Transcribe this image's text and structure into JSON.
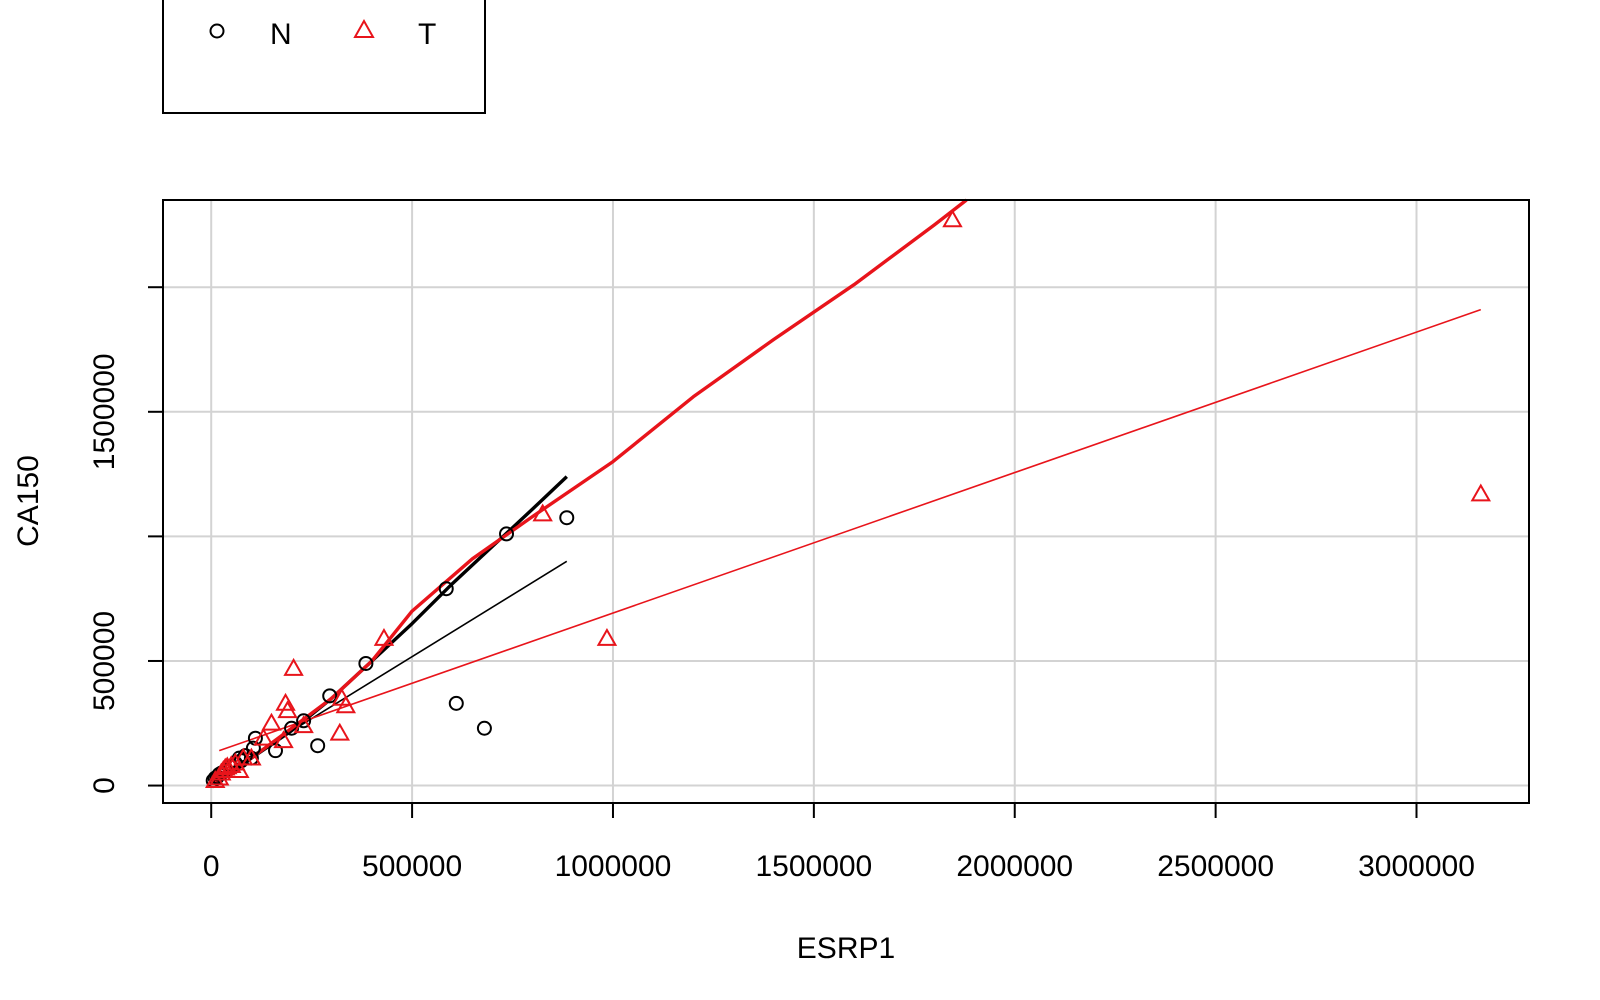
{
  "chart_data": {
    "type": "scatter",
    "xlabel": "ESRP1",
    "ylabel": "CA150",
    "xlim": [
      -120000,
      3280000
    ],
    "ylim": [
      -70000,
      2350000
    ],
    "xticks": [
      0,
      500000,
      1000000,
      1500000,
      2000000,
      2500000,
      3000000
    ],
    "xtick_labels": [
      "0",
      "500000",
      "1000000",
      "1500000",
      "2000000",
      "2500000",
      "3000000"
    ],
    "yticks": [
      0,
      500000,
      1000000,
      1500000,
      2000000
    ],
    "ytick_labels": [
      "0",
      "500000",
      "",
      "1500000",
      ""
    ],
    "grid": true,
    "legend": {
      "position": "top-left",
      "entries": [
        {
          "label": "N",
          "marker": "circle",
          "color": "#000000"
        },
        {
          "label": "T",
          "marker": "triangle",
          "color": "#e8141b"
        }
      ]
    },
    "series": [
      {
        "name": "N",
        "color": "#000000",
        "marker": "circle",
        "points": [
          [
            5000,
            20000
          ],
          [
            10000,
            30000
          ],
          [
            15000,
            35000
          ],
          [
            20000,
            45000
          ],
          [
            25000,
            50000
          ],
          [
            35000,
            60000
          ],
          [
            50000,
            75000
          ],
          [
            60000,
            90000
          ],
          [
            70000,
            110000
          ],
          [
            75000,
            100000
          ],
          [
            85000,
            120000
          ],
          [
            100000,
            110000
          ],
          [
            105000,
            150000
          ],
          [
            110000,
            190000
          ],
          [
            160000,
            140000
          ],
          [
            200000,
            230000
          ],
          [
            230000,
            260000
          ],
          [
            265000,
            160000
          ],
          [
            295000,
            360000
          ],
          [
            385000,
            490000
          ],
          [
            585000,
            790000
          ],
          [
            610000,
            330000
          ],
          [
            680000,
            230000
          ],
          [
            735000,
            1010000
          ],
          [
            885000,
            1075000
          ]
        ],
        "fit_line": [
          [
            5000,
            25000
          ],
          [
            885000,
            900000
          ]
        ],
        "smooth_curve": [
          [
            5000,
            15000
          ],
          [
            100000,
            110000
          ],
          [
            200000,
            220000
          ],
          [
            300000,
            350000
          ],
          [
            400000,
            500000
          ],
          [
            500000,
            650000
          ],
          [
            600000,
            810000
          ],
          [
            700000,
            960000
          ],
          [
            800000,
            1110000
          ],
          [
            885000,
            1240000
          ]
        ]
      },
      {
        "name": "T",
        "color": "#e8141b",
        "marker": "triangle",
        "points": [
          [
            10000,
            20000
          ],
          [
            20000,
            30000
          ],
          [
            25000,
            50000
          ],
          [
            30000,
            60000
          ],
          [
            35000,
            70000
          ],
          [
            40000,
            75000
          ],
          [
            50000,
            80000
          ],
          [
            60000,
            90000
          ],
          [
            70000,
            60000
          ],
          [
            80000,
            110000
          ],
          [
            100000,
            110000
          ],
          [
            130000,
            190000
          ],
          [
            150000,
            250000
          ],
          [
            180000,
            180000
          ],
          [
            185000,
            330000
          ],
          [
            190000,
            300000
          ],
          [
            205000,
            470000
          ],
          [
            230000,
            240000
          ],
          [
            320000,
            210000
          ],
          [
            325000,
            350000
          ],
          [
            335000,
            320000
          ],
          [
            430000,
            590000
          ],
          [
            825000,
            1090000
          ],
          [
            985000,
            590000
          ],
          [
            1845000,
            2270000
          ],
          [
            3160000,
            1170000
          ]
        ],
        "fit_line": [
          [
            20000,
            140000
          ],
          [
            3160000,
            1910000
          ]
        ],
        "smooth_curve": [
          [
            10000,
            10000
          ],
          [
            100000,
            110000
          ],
          [
            200000,
            230000
          ],
          [
            300000,
            350000
          ],
          [
            400000,
            500000
          ],
          [
            500000,
            700000
          ],
          [
            650000,
            910000
          ],
          [
            800000,
            1080000
          ],
          [
            1000000,
            1300000
          ],
          [
            1200000,
            1560000
          ],
          [
            1400000,
            1790000
          ],
          [
            1600000,
            2010000
          ],
          [
            1800000,
            2250000
          ],
          [
            1880000,
            2350000
          ]
        ]
      }
    ]
  }
}
